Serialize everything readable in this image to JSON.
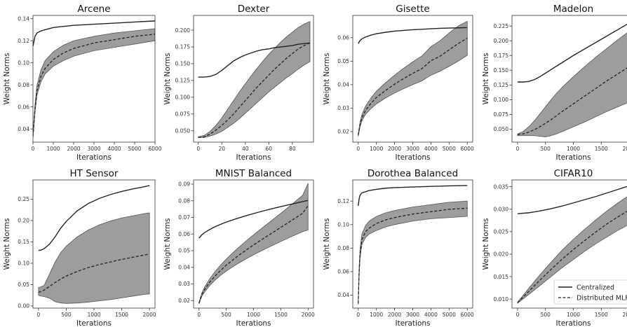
{
  "legend": {
    "centralized_label": "Centralized",
    "distributed_label": "Distributed MLP",
    "placement": "lower-right of last panel"
  },
  "colors": {
    "line": "#222222",
    "band": "#8c8c8c",
    "band_edge": "#555555"
  },
  "chart_data": [
    {
      "type": "line",
      "title": "Arcene",
      "xlabel": "Iterations",
      "ylabel": "Weight Norms",
      "xlim": [
        0,
        6000
      ],
      "ylim": [
        0.028,
        0.143
      ],
      "xticks": [
        0,
        1000,
        2000,
        3000,
        4000,
        5000,
        6000
      ],
      "yticks": [
        0.04,
        0.06,
        0.08,
        0.1,
        0.12,
        0.14
      ],
      "ytick_labels": [
        "0.04",
        "0.06",
        "0.08",
        "0.10",
        "0.12",
        "0.14"
      ],
      "x": [
        0,
        100,
        200,
        400,
        600,
        1000,
        1500,
        2000,
        3000,
        4000,
        5000,
        6000
      ],
      "series": [
        {
          "name": "Centralized",
          "values": [
            0.115,
            0.124,
            0.127,
            0.129,
            0.13,
            0.132,
            0.133,
            0.134,
            0.135,
            0.136,
            0.137,
            0.138
          ]
        },
        {
          "name": "Distributed MLP",
          "values": [
            0.033,
            0.058,
            0.075,
            0.088,
            0.095,
            0.103,
            0.109,
            0.113,
            0.118,
            0.121,
            0.124,
            0.126
          ]
        },
        {
          "name": "band_lower",
          "values": [
            0.032,
            0.055,
            0.071,
            0.083,
            0.09,
            0.097,
            0.102,
            0.106,
            0.111,
            0.114,
            0.117,
            0.12
          ]
        },
        {
          "name": "band_upper",
          "values": [
            0.034,
            0.062,
            0.08,
            0.094,
            0.102,
            0.11,
            0.116,
            0.12,
            0.124,
            0.127,
            0.129,
            0.131
          ]
        }
      ]
    },
    {
      "type": "line",
      "title": "Dexter",
      "xlabel": "Iterations",
      "ylabel": "Weight Norms",
      "xlim": [
        -4,
        98
      ],
      "ylim": [
        0.033,
        0.222
      ],
      "xticks": [
        0,
        20,
        40,
        60,
        80
      ],
      "yticks": [
        0.05,
        0.075,
        0.1,
        0.125,
        0.15,
        0.175,
        0.2
      ],
      "ytick_labels": [
        "0.050",
        "0.075",
        "0.100",
        "0.125",
        "0.150",
        "0.175",
        "0.200"
      ],
      "x": [
        0,
        5,
        10,
        15,
        20,
        25,
        30,
        35,
        40,
        45,
        50,
        55,
        60,
        65,
        70,
        75,
        80,
        85,
        90,
        95
      ],
      "series": [
        {
          "name": "Centralized",
          "values": [
            0.13,
            0.13,
            0.131,
            0.134,
            0.14,
            0.147,
            0.154,
            0.159,
            0.163,
            0.166,
            0.169,
            0.171,
            0.172,
            0.174,
            0.175,
            0.176,
            0.177,
            0.179,
            0.18,
            0.181
          ]
        },
        {
          "name": "Distributed MLP",
          "values": [
            0.04,
            0.041,
            0.045,
            0.051,
            0.058,
            0.066,
            0.075,
            0.085,
            0.095,
            0.105,
            0.115,
            0.124,
            0.133,
            0.142,
            0.15,
            0.158,
            0.165,
            0.172,
            0.177,
            0.181
          ]
        },
        {
          "name": "band_lower",
          "values": [
            0.04,
            0.04,
            0.042,
            0.045,
            0.049,
            0.055,
            0.061,
            0.068,
            0.076,
            0.084,
            0.092,
            0.1,
            0.108,
            0.115,
            0.122,
            0.129,
            0.135,
            0.142,
            0.148,
            0.153
          ]
        },
        {
          "name": "band_upper",
          "values": [
            0.041,
            0.043,
            0.049,
            0.058,
            0.069,
            0.082,
            0.095,
            0.108,
            0.12,
            0.132,
            0.143,
            0.154,
            0.164,
            0.173,
            0.182,
            0.19,
            0.197,
            0.204,
            0.209,
            0.213
          ]
        }
      ]
    },
    {
      "type": "line",
      "title": "Gisette",
      "xlabel": "Iterations",
      "ylabel": "Weight Norms",
      "xlim": [
        -300,
        6300
      ],
      "ylim": [
        0.0155,
        0.0695
      ],
      "xticks": [
        0,
        1000,
        2000,
        3000,
        4000,
        5000,
        6000
      ],
      "yticks": [
        0.02,
        0.03,
        0.04,
        0.05,
        0.06
      ],
      "ytick_labels": [
        "0.02",
        "0.03",
        "0.04",
        "0.05",
        "0.06"
      ],
      "x": [
        0,
        100,
        200,
        400,
        700,
        1000,
        1500,
        2000,
        2500,
        3000,
        3500,
        4000,
        4500,
        5000,
        5500,
        6000
      ],
      "series": [
        {
          "name": "Centralized",
          "values": [
            0.0575,
            0.0588,
            0.0595,
            0.0603,
            0.0611,
            0.0617,
            0.0623,
            0.0628,
            0.0631,
            0.0634,
            0.0636,
            0.0638,
            0.064,
            0.0641,
            0.0642,
            0.0643
          ]
        },
        {
          "name": "Distributed MLP",
          "values": [
            0.0185,
            0.023,
            0.0258,
            0.029,
            0.032,
            0.0345,
            0.0375,
            0.0402,
            0.0426,
            0.0448,
            0.0468,
            0.0502,
            0.0521,
            0.0548,
            0.0575,
            0.0598
          ]
        },
        {
          "name": "band_lower",
          "values": [
            0.018,
            0.022,
            0.0245,
            0.0273,
            0.0298,
            0.0318,
            0.0343,
            0.0364,
            0.0383,
            0.04,
            0.0416,
            0.044,
            0.0457,
            0.0478,
            0.05,
            0.0525
          ]
        },
        {
          "name": "band_upper",
          "values": [
            0.019,
            0.024,
            0.0272,
            0.0308,
            0.0343,
            0.0372,
            0.0408,
            0.044,
            0.047,
            0.0497,
            0.0522,
            0.0562,
            0.0587,
            0.062,
            0.065,
            0.067
          ]
        }
      ]
    },
    {
      "type": "line",
      "title": "Madelon",
      "xlabel": "Iterations",
      "ylabel": "Weight Norms",
      "xlim": [
        -100,
        2100
      ],
      "ylim": [
        0.028,
        0.243
      ],
      "xticks": [
        0,
        500,
        1000,
        1500,
        2000
      ],
      "xtick_labels": [
        "0",
        "500",
        "1000",
        "1500",
        "2000"
      ],
      "yticks": [
        0.05,
        0.075,
        0.1,
        0.125,
        0.15,
        0.175,
        0.2,
        0.225
      ],
      "ytick_labels": [
        "0.050",
        "0.075",
        "0.100",
        "0.125",
        "0.150",
        "0.175",
        "0.200",
        "0.225"
      ],
      "x": [
        0,
        100,
        200,
        300,
        400,
        500,
        600,
        700,
        800,
        1000,
        1200,
        1400,
        1600,
        1800,
        2000
      ],
      "series": [
        {
          "name": "Centralized",
          "values": [
            0.13,
            0.13,
            0.131,
            0.134,
            0.139,
            0.145,
            0.151,
            0.157,
            0.163,
            0.175,
            0.186,
            0.197,
            0.208,
            0.219,
            0.23
          ]
        },
        {
          "name": "Distributed MLP",
          "values": [
            0.041,
            0.042,
            0.045,
            0.049,
            0.054,
            0.06,
            0.066,
            0.073,
            0.08,
            0.093,
            0.106,
            0.119,
            0.132,
            0.144,
            0.156
          ]
        },
        {
          "name": "band_lower",
          "values": [
            0.039,
            0.039,
            0.039,
            0.039,
            0.038,
            0.037,
            0.039,
            0.042,
            0.046,
            0.054,
            0.062,
            0.071,
            0.08,
            0.088,
            0.096
          ]
        },
        {
          "name": "band_upper",
          "values": [
            0.042,
            0.046,
            0.054,
            0.064,
            0.076,
            0.088,
            0.1,
            0.111,
            0.121,
            0.139,
            0.156,
            0.172,
            0.187,
            0.202,
            0.216
          ]
        }
      ]
    },
    {
      "type": "line",
      "title": "HT Sensor",
      "xlabel": "Iterations",
      "ylabel": "Weight Norms",
      "xlim": [
        -100,
        2100
      ],
      "ylim": [
        -0.005,
        0.295
      ],
      "xticks": [
        0,
        500,
        1000,
        1500,
        2000
      ],
      "yticks": [
        0.0,
        0.05,
        0.1,
        0.15,
        0.2,
        0.25
      ],
      "ytick_labels": [
        "0.00",
        "0.05",
        "0.10",
        "0.15",
        "0.20",
        "0.25"
      ],
      "x": [
        0,
        50,
        100,
        200,
        300,
        400,
        500,
        700,
        900,
        1100,
        1300,
        1500,
        1700,
        1900,
        2000
      ],
      "series": [
        {
          "name": "Centralized",
          "values": [
            0.13,
            0.131,
            0.134,
            0.145,
            0.162,
            0.182,
            0.198,
            0.223,
            0.24,
            0.252,
            0.261,
            0.268,
            0.274,
            0.279,
            0.282
          ]
        },
        {
          "name": "Distributed MLP",
          "values": [
            0.032,
            0.034,
            0.037,
            0.046,
            0.055,
            0.063,
            0.07,
            0.081,
            0.09,
            0.097,
            0.103,
            0.109,
            0.114,
            0.119,
            0.122
          ]
        },
        {
          "name": "band_lower",
          "values": [
            0.025,
            0.023,
            0.022,
            0.018,
            0.01,
            0.007,
            0.006,
            0.007,
            0.009,
            0.012,
            0.015,
            0.019,
            0.023,
            0.027,
            0.028
          ]
        },
        {
          "name": "band_upper",
          "values": [
            0.043,
            0.045,
            0.048,
            0.075,
            0.103,
            0.125,
            0.14,
            0.162,
            0.178,
            0.19,
            0.199,
            0.206,
            0.211,
            0.216,
            0.218
          ]
        }
      ]
    },
    {
      "type": "line",
      "title": "MNIST Balanced",
      "xlabel": "Iterations",
      "ylabel": "Weight Norms",
      "xlim": [
        -100,
        2100
      ],
      "ylim": [
        0.0155,
        0.0925
      ],
      "xticks": [
        0,
        500,
        1000,
        1500,
        2000
      ],
      "yticks": [
        0.02,
        0.03,
        0.04,
        0.05,
        0.06,
        0.07,
        0.08,
        0.09
      ],
      "ytick_labels": [
        "0.02",
        "0.03",
        "0.04",
        "0.05",
        "0.06",
        "0.07",
        "0.08",
        "0.09"
      ],
      "x": [
        0,
        50,
        100,
        200,
        300,
        400,
        500,
        700,
        900,
        1100,
        1300,
        1500,
        1700,
        1900,
        2000
      ],
      "series": [
        {
          "name": "Centralized",
          "values": [
            0.0575,
            0.0595,
            0.0608,
            0.0628,
            0.0645,
            0.0659,
            0.0672,
            0.0694,
            0.0714,
            0.0732,
            0.0749,
            0.0765,
            0.078,
            0.0795,
            0.0802
          ]
        },
        {
          "name": "Distributed MLP",
          "values": [
            0.0185,
            0.0235,
            0.0265,
            0.0312,
            0.035,
            0.0383,
            0.0413,
            0.0465,
            0.0512,
            0.0556,
            0.0598,
            0.064,
            0.0682,
            0.0724,
            0.077
          ]
        },
        {
          "name": "band_lower",
          "values": [
            0.018,
            0.0225,
            0.025,
            0.0292,
            0.0325,
            0.0353,
            0.0378,
            0.042,
            0.0458,
            0.0492,
            0.0524,
            0.0555,
            0.0585,
            0.0614,
            0.0625
          ]
        },
        {
          "name": "band_upper",
          "values": [
            0.019,
            0.0245,
            0.028,
            0.0333,
            0.0377,
            0.0415,
            0.045,
            0.0512,
            0.0568,
            0.0622,
            0.0673,
            0.0725,
            0.0778,
            0.0832,
            0.0905
          ]
        }
      ]
    },
    {
      "type": "line",
      "title": "Dorothea Balanced",
      "xlabel": "Iterations",
      "ylabel": "Weight Norms",
      "xlim": [
        -300,
        6300
      ],
      "ylim": [
        0.029,
        0.138
      ],
      "xticks": [
        0,
        1000,
        2000,
        3000,
        4000,
        5000,
        6000
      ],
      "yticks": [
        0.04,
        0.06,
        0.08,
        0.1,
        0.12
      ],
      "ytick_labels": [
        "0.04",
        "0.06",
        "0.08",
        "0.10",
        "0.12"
      ],
      "x": [
        0,
        50,
        100,
        200,
        400,
        600,
        1000,
        1500,
        2000,
        3000,
        4000,
        5000,
        6000
      ],
      "series": [
        {
          "name": "Centralized",
          "values": [
            0.116,
            0.122,
            0.125,
            0.127,
            0.128,
            0.129,
            0.13,
            0.131,
            0.1315,
            0.132,
            0.1325,
            0.133,
            0.1333
          ]
        },
        {
          "name": "Distributed MLP",
          "values": [
            0.033,
            0.06,
            0.075,
            0.087,
            0.094,
            0.097,
            0.101,
            0.104,
            0.106,
            0.109,
            0.111,
            0.113,
            0.114
          ]
        },
        {
          "name": "band_lower",
          "values": [
            0.032,
            0.057,
            0.071,
            0.083,
            0.089,
            0.092,
            0.095,
            0.098,
            0.1,
            0.103,
            0.105,
            0.106,
            0.107
          ]
        },
        {
          "name": "band_upper",
          "values": [
            0.034,
            0.063,
            0.079,
            0.092,
            0.099,
            0.103,
            0.107,
            0.11,
            0.112,
            0.115,
            0.117,
            0.119,
            0.12
          ]
        }
      ]
    },
    {
      "type": "line",
      "title": "CIFAR10",
      "xlabel": "Iterations",
      "ylabel": "Weight Norms",
      "xlim": [
        -100,
        2100
      ],
      "ylim": [
        0.008,
        0.0365
      ],
      "xticks": [
        0,
        500,
        1000,
        1500,
        2000
      ],
      "xtick_labels": [
        "0",
        "500",
        "1000",
        "1500",
        "2000"
      ],
      "yticks": [
        0.01,
        0.015,
        0.02,
        0.025,
        0.03,
        0.035
      ],
      "ytick_labels": [
        "0.010",
        "0.015",
        "0.020",
        "0.025",
        "0.030",
        "0.035"
      ],
      "x": [
        0,
        200,
        400,
        600,
        800,
        1000,
        1200,
        1400,
        1600,
        1800,
        2000
      ],
      "series": [
        {
          "name": "Centralized",
          "values": [
            0.029,
            0.0292,
            0.0296,
            0.0301,
            0.0307,
            0.0314,
            0.0321,
            0.0328,
            0.0336,
            0.0344,
            0.0352
          ]
        },
        {
          "name": "Distributed MLP",
          "values": [
            0.0092,
            0.0117,
            0.0142,
            0.0166,
            0.0189,
            0.021,
            0.023,
            0.0249,
            0.0267,
            0.0283,
            0.0298
          ]
        },
        {
          "name": "band_lower",
          "values": [
            0.0091,
            0.011,
            0.013,
            0.015,
            0.017,
            0.0188,
            0.0206,
            0.0223,
            0.0238,
            0.0253,
            0.0266
          ]
        },
        {
          "name": "band_upper",
          "values": [
            0.0093,
            0.0124,
            0.0154,
            0.0182,
            0.0209,
            0.0233,
            0.0255,
            0.0276,
            0.0296,
            0.0314,
            0.0331
          ]
        }
      ]
    }
  ]
}
